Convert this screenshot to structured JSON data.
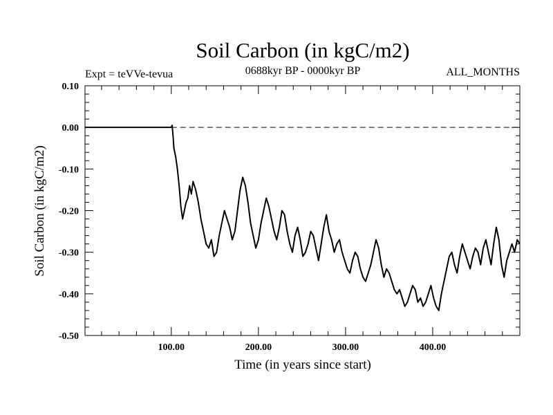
{
  "chart_data": {
    "type": "line",
    "title": "Soil Carbon (in kgC/m2)",
    "subtitle_left": "Expt = teVVe-tevua",
    "subtitle_center": "0688kyr BP - 0000kyr BP",
    "subtitle_right": "ALL_MONTHS",
    "xlabel": "Time (in years since start)",
    "ylabel": "Soil Carbon (in kgC/m2)",
    "xlim": [
      1,
      500
    ],
    "ylim": [
      -0.5,
      0.1
    ],
    "x_ticks": [
      100,
      200,
      300,
      400
    ],
    "x_tick_labels": [
      "100.00",
      "200.00",
      "300.00",
      "400.00"
    ],
    "y_ticks": [
      0.1,
      0.0,
      -0.1,
      -0.2,
      -0.3,
      -0.4,
      -0.5
    ],
    "y_tick_labels": [
      "0.10",
      "0.00",
      "-0.10",
      "-0.20",
      "-0.30",
      "-0.40",
      "-0.50"
    ],
    "reference_line": {
      "y": 0.0,
      "style": "dashed"
    },
    "grid": false,
    "series": [
      {
        "color": "#000000",
        "x": [
          1,
          100,
          101,
          102,
          103,
          105,
          107,
          109,
          111,
          113,
          115,
          117,
          119,
          121,
          123,
          125,
          128,
          131,
          134,
          137,
          140,
          143,
          146,
          149,
          152,
          155,
          158,
          161,
          164,
          167,
          170,
          173,
          176,
          179,
          182,
          185,
          188,
          191,
          194,
          197,
          200,
          203,
          206,
          209,
          212,
          215,
          218,
          221,
          224,
          227,
          230,
          233,
          236,
          239,
          242,
          245,
          248,
          251,
          254,
          257,
          260,
          263,
          266,
          269,
          272,
          275,
          278,
          281,
          284,
          287,
          290,
          293,
          296,
          299,
          302,
          305,
          308,
          311,
          314,
          317,
          320,
          323,
          326,
          329,
          332,
          335,
          338,
          341,
          344,
          347,
          350,
          353,
          356,
          359,
          362,
          365,
          368,
          371,
          374,
          377,
          380,
          383,
          386,
          389,
          392,
          395,
          398,
          401,
          404,
          407,
          410,
          413,
          416,
          419,
          422,
          425,
          428,
          431,
          434,
          437,
          440,
          443,
          446,
          449,
          452,
          455,
          458,
          461,
          464,
          467,
          470,
          473,
          476,
          479,
          482,
          485,
          488,
          491,
          494,
          497,
          500
        ],
        "y": [
          0.0,
          0.0,
          0.005,
          -0.02,
          -0.05,
          -0.07,
          -0.1,
          -0.14,
          -0.19,
          -0.22,
          -0.2,
          -0.18,
          -0.17,
          -0.14,
          -0.16,
          -0.13,
          -0.15,
          -0.18,
          -0.22,
          -0.25,
          -0.28,
          -0.29,
          -0.27,
          -0.31,
          -0.3,
          -0.26,
          -0.23,
          -0.2,
          -0.22,
          -0.24,
          -0.27,
          -0.25,
          -0.2,
          -0.15,
          -0.12,
          -0.14,
          -0.18,
          -0.23,
          -0.26,
          -0.29,
          -0.27,
          -0.23,
          -0.2,
          -0.17,
          -0.19,
          -0.22,
          -0.25,
          -0.27,
          -0.24,
          -0.2,
          -0.21,
          -0.25,
          -0.28,
          -0.3,
          -0.26,
          -0.24,
          -0.27,
          -0.31,
          -0.3,
          -0.28,
          -0.25,
          -0.26,
          -0.29,
          -0.32,
          -0.28,
          -0.24,
          -0.21,
          -0.25,
          -0.27,
          -0.3,
          -0.28,
          -0.27,
          -0.3,
          -0.32,
          -0.34,
          -0.35,
          -0.32,
          -0.3,
          -0.31,
          -0.34,
          -0.36,
          -0.37,
          -0.35,
          -0.33,
          -0.3,
          -0.27,
          -0.29,
          -0.33,
          -0.36,
          -0.34,
          -0.35,
          -0.37,
          -0.39,
          -0.4,
          -0.39,
          -0.41,
          -0.43,
          -0.42,
          -0.4,
          -0.38,
          -0.39,
          -0.42,
          -0.41,
          -0.43,
          -0.42,
          -0.4,
          -0.38,
          -0.41,
          -0.43,
          -0.44,
          -0.4,
          -0.37,
          -0.34,
          -0.31,
          -0.3,
          -0.33,
          -0.35,
          -0.31,
          -0.28,
          -0.3,
          -0.32,
          -0.34,
          -0.31,
          -0.29,
          -0.3,
          -0.33,
          -0.29,
          -0.27,
          -0.3,
          -0.33,
          -0.28,
          -0.24,
          -0.27,
          -0.33,
          -0.36,
          -0.32,
          -0.3,
          -0.28,
          -0.3,
          -0.27,
          -0.28
        ]
      }
    ]
  }
}
